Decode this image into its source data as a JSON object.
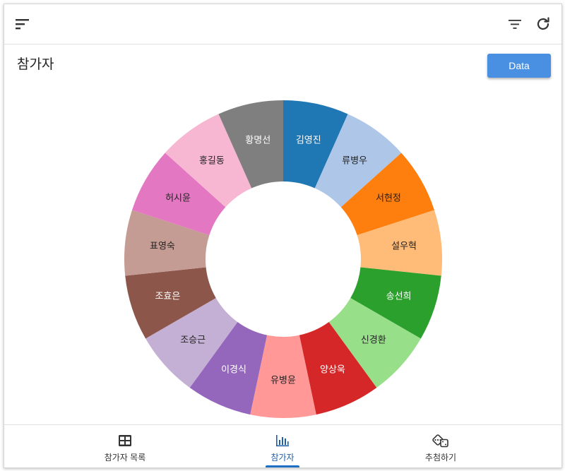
{
  "page": {
    "title": "참가자"
  },
  "toolbar": {
    "data_label": "Data"
  },
  "icons": {
    "menu": "sort-icon",
    "filter": "filter-icon",
    "refresh": "refresh-icon"
  },
  "nav": {
    "items": [
      {
        "label": "참가자 목록",
        "icon": "table-icon",
        "active": false
      },
      {
        "label": "참가자",
        "icon": "bar-chart-icon",
        "active": true
      },
      {
        "label": "추첨하기",
        "icon": "dice-icon",
        "active": false
      }
    ]
  },
  "chart_data": {
    "type": "pie",
    "donut": true,
    "title": "",
    "legend": "none",
    "categories": [
      "김영진",
      "류병우",
      "서현정",
      "설우혁",
      "송선희",
      "신경환",
      "양상욱",
      "유병윤",
      "이경식",
      "조승근",
      "조효은",
      "표영숙",
      "허시윤",
      "홍길동",
      "황명선"
    ],
    "values": [
      1,
      1,
      1,
      1,
      1,
      1,
      1,
      1,
      1,
      1,
      1,
      1,
      1,
      1,
      1
    ],
    "colors": [
      "#1f77b4",
      "#aec7e8",
      "#ff7f0e",
      "#ffbb78",
      "#2ca02c",
      "#98df8a",
      "#d62728",
      "#ff9896",
      "#9467bd",
      "#c5b0d5",
      "#8c564b",
      "#c49c94",
      "#e377c2",
      "#f7b6d2",
      "#7f7f7f"
    ],
    "label_colors": [
      "#ffffff",
      "#222222",
      "#222222",
      "#222222",
      "#ffffff",
      "#222222",
      "#ffffff",
      "#222222",
      "#ffffff",
      "#222222",
      "#ffffff",
      "#222222",
      "#222222",
      "#222222",
      "#ffffff"
    ]
  }
}
